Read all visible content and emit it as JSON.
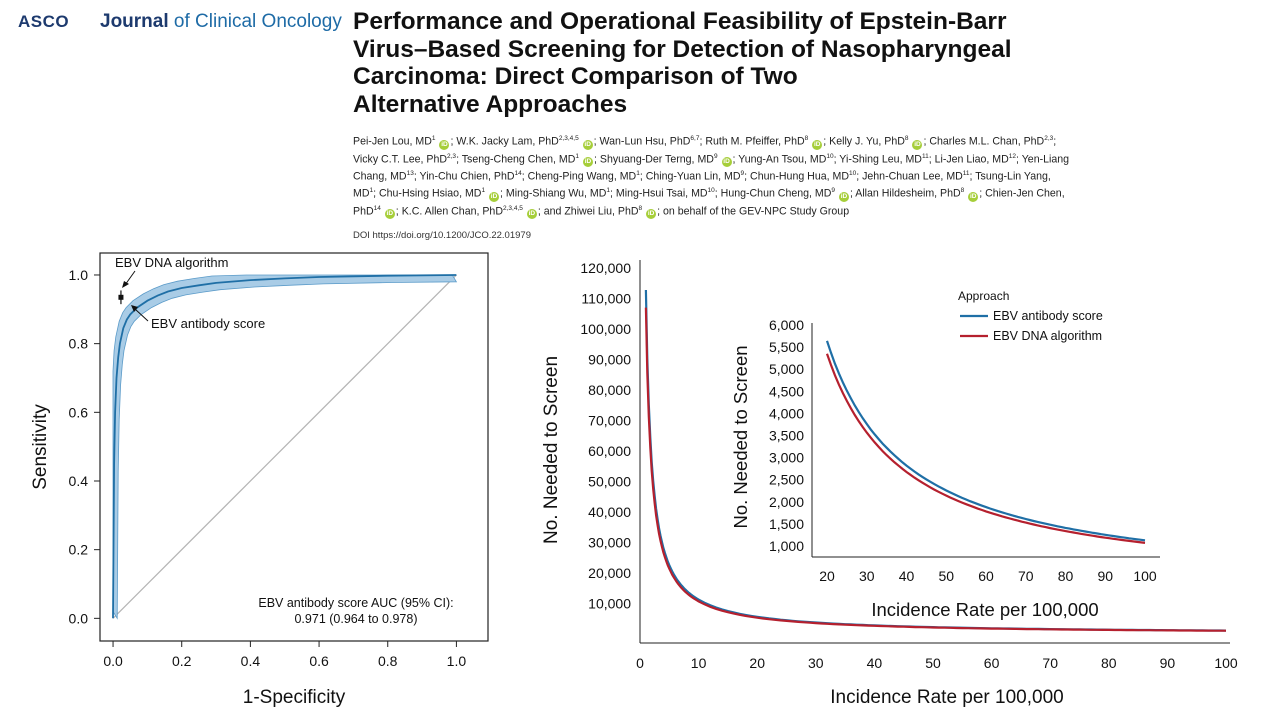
{
  "header": {
    "publisher": "ASCO",
    "journal_prefix": "Journal",
    "journal_suffix": " of Clinical Oncology",
    "title_lines": [
      "Performance and Operational Feasibility of Epstein-Barr",
      "Virus–Based Screening for Detection of Nasopharyngeal",
      "Carcinoma: Direct Comparison of Two",
      "Alternative Approaches"
    ],
    "authors": [
      {
        "t": "Pei-Jen Lou, MD",
        "s": "1",
        "o": true
      },
      {
        "t": "W.K. Jacky Lam, PhD",
        "s": "2,3,4,5",
        "o": true
      },
      {
        "t": "Wan-Lun Hsu, PhD",
        "s": "6,7",
        "o": false
      },
      {
        "t": "Ruth M. Pfeiffer, PhD",
        "s": "8",
        "o": true
      },
      {
        "t": "Kelly J. Yu, PhD",
        "s": "8",
        "o": true
      },
      {
        "t": "Charles M.L. Chan, PhD",
        "s": "2,3",
        "o": false
      },
      {
        "t": "Vicky C.T. Lee, PhD",
        "s": "2,3",
        "o": false
      },
      {
        "t": "Tseng-Cheng Chen, MD",
        "s": "1",
        "o": true
      },
      {
        "t": "Shyuang-Der Terng, MD",
        "s": "9",
        "o": true
      },
      {
        "t": "Yung-An Tsou, MD",
        "s": "10",
        "o": false
      },
      {
        "t": "Yi-Shing Leu, MD",
        "s": "11",
        "o": false
      },
      {
        "t": "Li-Jen Liao, MD",
        "s": "12",
        "o": false
      },
      {
        "t": "Yen-Liang Chang, MD",
        "s": "13",
        "o": false
      },
      {
        "t": "Yin-Chu Chien, PhD",
        "s": "14",
        "o": false
      },
      {
        "t": "Cheng-Ping Wang, MD",
        "s": "1",
        "o": false
      },
      {
        "t": "Ching-Yuan Lin, MD",
        "s": "9",
        "o": false
      },
      {
        "t": "Chun-Hung Hua, MD",
        "s": "10",
        "o": false
      },
      {
        "t": "Jehn-Chuan Lee, MD",
        "s": "11",
        "o": false
      },
      {
        "t": "Tsung-Lin Yang, MD",
        "s": "1",
        "o": false
      },
      {
        "t": "Chu-Hsing Hsiao, MD",
        "s": "1",
        "o": true
      },
      {
        "t": "Ming-Shiang Wu, MD",
        "s": "1",
        "o": false
      },
      {
        "t": "Ming-Hsui Tsai, MD",
        "s": "10",
        "o": false
      },
      {
        "t": "Hung-Chun Cheng, MD",
        "s": "9",
        "o": true
      },
      {
        "t": "Allan Hildesheim, PhD",
        "s": "8",
        "o": true
      },
      {
        "t": "Chien-Jen Chen, PhD",
        "s": "14",
        "o": true
      },
      {
        "t": "K.C. Allen Chan, PhD",
        "s": "2,3,4,5",
        "o": true
      },
      {
        "t": "and Zhiwei Liu, PhD",
        "s": "8",
        "o": true
      }
    ],
    "author_suffix": "; on behalf of the GEV-NPC Study Group",
    "orcid_mark": "iD",
    "doi": "DOI https://doi.org/10.1200/JCO.22.01979"
  },
  "chart_data": [
    {
      "type": "line",
      "xlabel": "1-Specificity",
      "ylabel": "Sensitivity",
      "xlim": [
        0,
        1
      ],
      "ylim": [
        0,
        1
      ],
      "xticks": [
        "0.0",
        "0.2",
        "0.4",
        "0.6",
        "0.8",
        "1.0"
      ],
      "yticks": [
        "0.0",
        "0.2",
        "0.4",
        "0.6",
        "0.8",
        "1.0"
      ],
      "series": [
        {
          "name": "EBV antibody score",
          "x": [
            0,
            0.003,
            0.006,
            0.01,
            0.015,
            0.02,
            0.03,
            0.04,
            0.05,
            0.07,
            0.1,
            0.13,
            0.16,
            0.2,
            0.25,
            0.3,
            0.4,
            0.5,
            0.6,
            0.8,
            1.0
          ],
          "y": [
            0,
            0.45,
            0.6,
            0.7,
            0.76,
            0.8,
            0.845,
            0.87,
            0.885,
            0.905,
            0.925,
            0.94,
            0.952,
            0.962,
            0.97,
            0.977,
            0.985,
            0.99,
            0.994,
            0.998,
            1.0
          ],
          "color": "#1f6fa6"
        }
      ],
      "ci_band_color": "#a9cce6",
      "points": [
        {
          "name": "EBV DNA algorithm",
          "x": 0.023,
          "y": 0.935,
          "xerr": 0.006,
          "yerr": 0.02
        }
      ],
      "annotations": [
        "EBV DNA algorithm",
        "EBV antibody score"
      ],
      "auc_text": [
        "EBV antibody score AUC (95% CI):",
        "0.971 (0.964 to 0.978)"
      ],
      "reference_line": true
    },
    {
      "type": "line",
      "xlabel": "Incidence Rate per 100,000",
      "ylabel": "No. Needed to Screen",
      "xlim": [
        0,
        100
      ],
      "ylim": [
        0,
        120000
      ],
      "xticks": [
        "0",
        "10",
        "20",
        "30",
        "40",
        "50",
        "60",
        "70",
        "80",
        "90",
        "100"
      ],
      "yticks": [
        "10,000",
        "20,000",
        "30,000",
        "40,000",
        "50,000",
        "60,000",
        "70,000",
        "80,000",
        "90,000",
        "100,000",
        "110,000",
        "120,000"
      ],
      "legend_title": "Approach",
      "series": [
        {
          "name": "EBV antibody score",
          "k": 112800,
          "color": "#1f6fa6"
        },
        {
          "name": "EBV DNA algorithm",
          "k": 107000,
          "color": "#b5202e"
        }
      ],
      "inset": {
        "xlim": [
          20,
          100
        ],
        "ylim": [
          1000,
          6000
        ],
        "xticks": [
          "20",
          "30",
          "40",
          "50",
          "60",
          "70",
          "80",
          "90",
          "100"
        ],
        "yticks": [
          "1,000",
          "1,500",
          "2,000",
          "2,500",
          "3,000",
          "3,500",
          "4,000",
          "4,500",
          "5,000",
          "5,500",
          "6,000"
        ],
        "xlabel": "Incidence Rate per 100,000",
        "ylabel": "No. Needed to Screen"
      }
    }
  ]
}
